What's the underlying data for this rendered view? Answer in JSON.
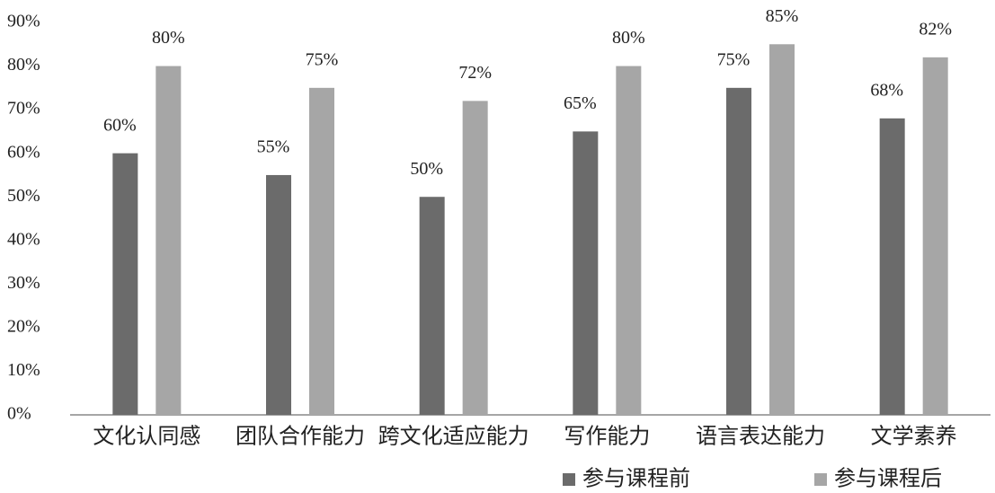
{
  "chart_data": {
    "type": "bar",
    "categories": [
      "文化认同感",
      "团队合作能力",
      "跨文化适应能力",
      "写作能力",
      "语言表达能力",
      "文学素养"
    ],
    "series": [
      {
        "name": "参与课程前",
        "color": "#6b6b6b",
        "values": [
          60,
          55,
          50,
          65,
          75,
          68
        ],
        "value_labels": [
          "60%",
          "55%",
          "50%",
          "65%",
          "75%",
          "68%"
        ]
      },
      {
        "name": "参与课程后",
        "color": "#a6a6a6",
        "values": [
          80,
          75,
          72,
          80,
          85,
          82
        ],
        "value_labels": [
          "80%",
          "75%",
          "72%",
          "80%",
          "85%",
          "82%"
        ]
      }
    ],
    "ylim": [
      0,
      90
    ],
    "yticks": [
      {
        "value": 0,
        "label": "0%"
      },
      {
        "value": 10,
        "label": "10%"
      },
      {
        "value": 20,
        "label": "20%"
      },
      {
        "value": 30,
        "label": "30%"
      },
      {
        "value": 40,
        "label": "40%"
      },
      {
        "value": 50,
        "label": "50%"
      },
      {
        "value": 60,
        "label": "60%"
      },
      {
        "value": 70,
        "label": "70%"
      },
      {
        "value": 80,
        "label": "80%"
      },
      {
        "value": 90,
        "label": "90%"
      }
    ],
    "grid": false,
    "legend": "bottom-right"
  }
}
